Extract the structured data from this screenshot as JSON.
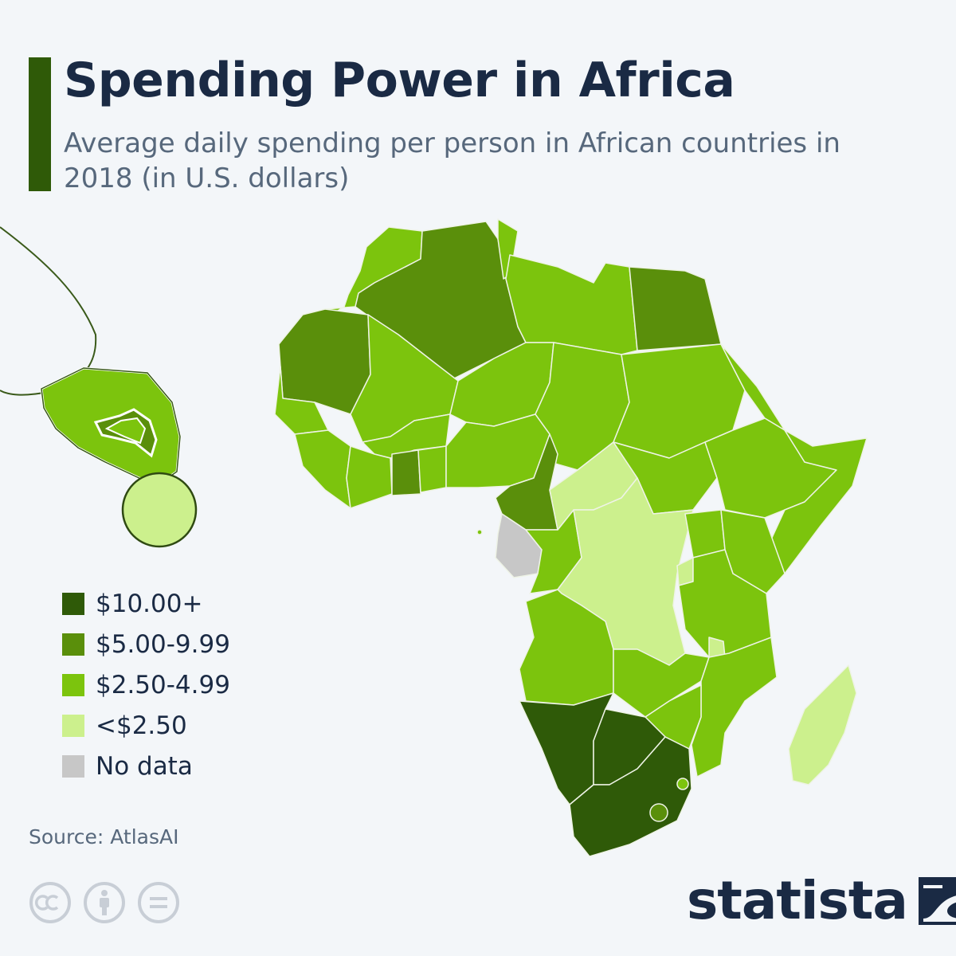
{
  "title": "Spending Power in Africa",
  "subtitle": "Average daily spending per person in African countries in 2018 (in U.S. dollars)",
  "colors": {
    "accent": "#2f5a08",
    "tier_10_plus": "#2f5a08",
    "tier_5_to_10": "#5a8f0b",
    "tier_2_5_to_5": "#7cc40d",
    "tier_under_2_5": "#ccf08d",
    "no_data": "#c7c7c7"
  },
  "legend": {
    "items": [
      {
        "label": "$10.00+",
        "color": "#2f5a08"
      },
      {
        "label": "$5.00-9.99",
        "color": "#5a8f0b"
      },
      {
        "label": "$2.50-4.99",
        "color": "#7cc40d"
      },
      {
        "label": "<$2.50",
        "color": "#ccf08d"
      },
      {
        "label": "No data",
        "color": "#c7c7c7"
      }
    ]
  },
  "source": "Source: AtlasAI",
  "brand": {
    "name": "statista"
  },
  "icons": [
    "cc-icon",
    "attribution-icon",
    "no-derivatives-icon",
    "statista-logo-icon"
  ]
}
